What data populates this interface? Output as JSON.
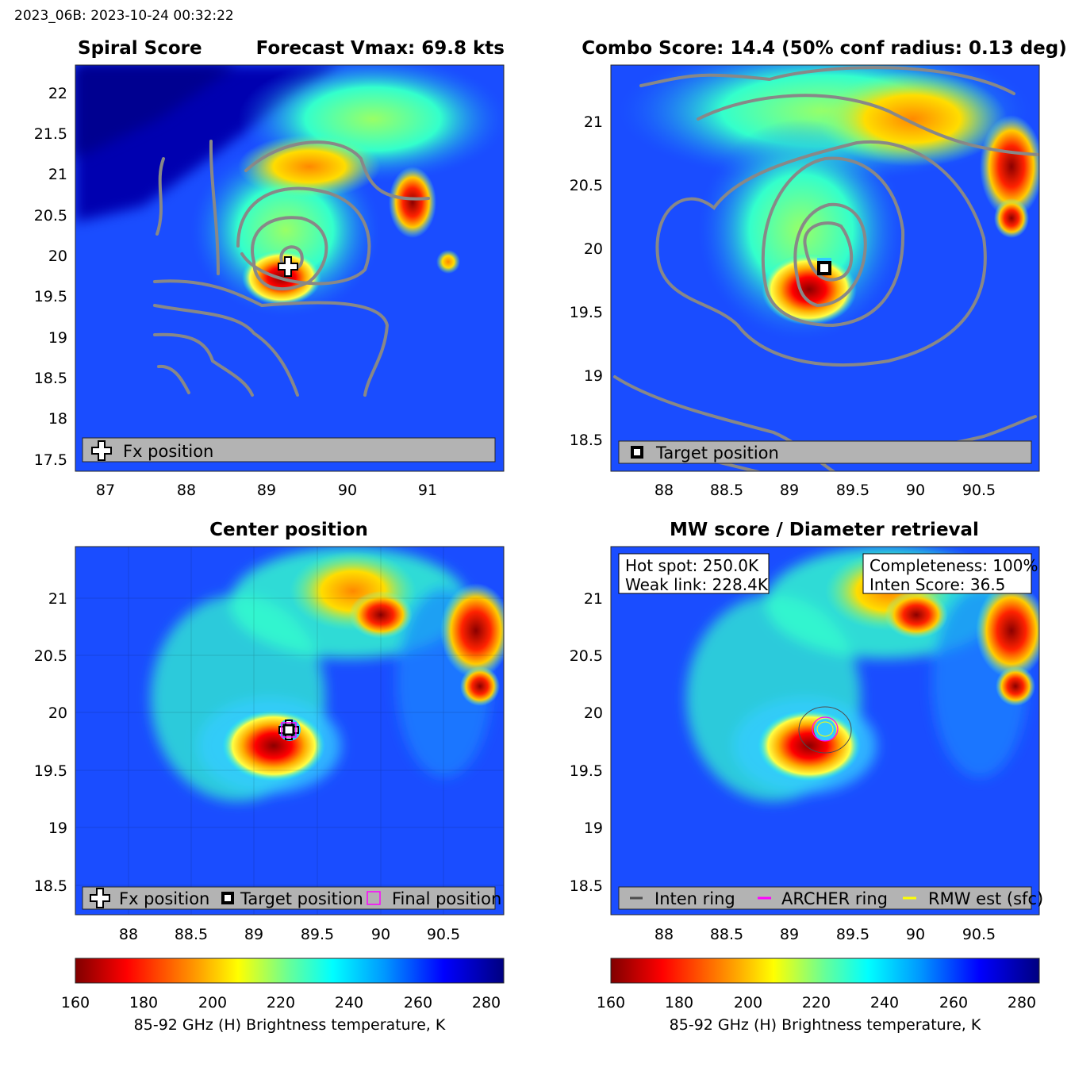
{
  "header": {
    "id_time": "2023_06B: 2023-10-24 00:32:22"
  },
  "colors": {
    "contour": "#888888",
    "legend_box": "#b3b3b3",
    "archer": "#ff00ff",
    "rmw": "#ffff00",
    "inten_ring": "#4d4d4d"
  },
  "panels": {
    "p1": {
      "title_left": "Spiral Score",
      "title_right": "Forecast Vmax: 69.8 kts",
      "legend": [
        "Fx position"
      ],
      "xticks": [
        "87",
        "88",
        "89",
        "90",
        "91"
      ],
      "yticks": [
        "22",
        "21.5",
        "21",
        "20.5",
        "20",
        "19.5",
        "19",
        "18.5",
        "18",
        "17.5"
      ],
      "icon": "fx-position-icon"
    },
    "p2": {
      "title": "Combo Score: 14.4  (50% conf radius: 0.13 deg)",
      "legend": [
        "Target position"
      ],
      "xticks": [
        "88",
        "88.5",
        "89",
        "89.5",
        "90",
        "90.5"
      ],
      "yticks": [
        "21",
        "20.5",
        "20",
        "19.5",
        "19",
        "18.5"
      ],
      "icon": "target-position-icon"
    },
    "p3": {
      "title": "Center position",
      "legend": [
        "Fx position",
        "Target position",
        "Final position"
      ],
      "xticks": [
        "88",
        "88.5",
        "89",
        "89.5",
        "90",
        "90.5"
      ],
      "yticks": [
        "21",
        "20.5",
        "20",
        "19.5",
        "19",
        "18.5"
      ],
      "colorbar_label": "85-92 GHz (H) Brightness temperature, K",
      "colorbar_ticks": [
        "160",
        "180",
        "200",
        "220",
        "240",
        "260",
        "280"
      ]
    },
    "p4": {
      "title": "MW score / Diameter retrieval",
      "box_left": [
        "Hot spot: 250.0K",
        "Weak link: 228.4K"
      ],
      "box_right": [
        "Completeness: 100%",
        "Inten Score: 36.5"
      ],
      "legend": [
        "Inten ring",
        "ARCHER ring",
        "RMW est (sfc)"
      ],
      "xticks": [
        "88",
        "88.5",
        "89",
        "89.5",
        "90",
        "90.5"
      ],
      "yticks": [
        "21",
        "20.5",
        "20",
        "19.5",
        "19",
        "18.5"
      ],
      "colorbar_label": "85-92 GHz (H) Brightness temperature, K",
      "colorbar_ticks": [
        "160",
        "180",
        "200",
        "220",
        "240",
        "260",
        "280"
      ]
    }
  },
  "chart_data": [
    {
      "type": "heatmap",
      "title": "Spiral Score",
      "subtitle": "Forecast Vmax: 69.8 kts",
      "xlim": [
        86.6,
        91.9
      ],
      "ylim": [
        17.3,
        22.4
      ],
      "x_ticks": [
        87,
        88,
        89,
        90,
        91
      ],
      "y_ticks": [
        17.5,
        18,
        18.5,
        19,
        19.5,
        20,
        20.5,
        21,
        21.5,
        22
      ],
      "markers": [
        {
          "name": "Fx position",
          "x": 89.28,
          "y": 19.86
        }
      ],
      "colormap": "jet"
    },
    {
      "type": "heatmap",
      "title": "Combo Score: 14.4  (50% conf radius: 0.13 deg)",
      "xlim": [
        87.6,
        91.0
      ],
      "ylim": [
        18.25,
        21.45
      ],
      "x_ticks": [
        88,
        88.5,
        89,
        89.5,
        90,
        90.5
      ],
      "y_ticks": [
        18.5,
        19,
        19.5,
        20,
        20.5,
        21
      ],
      "markers": [
        {
          "name": "Target position",
          "x": 89.27,
          "y": 19.85
        }
      ],
      "colormap": "jet"
    },
    {
      "type": "heatmap",
      "title": "Center position",
      "xlim": [
        87.6,
        91.0
      ],
      "ylim": [
        18.25,
        21.45
      ],
      "x_ticks": [
        88,
        88.5,
        89,
        89.5,
        90,
        90.5
      ],
      "y_ticks": [
        18.5,
        19,
        19.5,
        20,
        20.5,
        21
      ],
      "markers": [
        {
          "name": "Fx position",
          "x": 89.28,
          "y": 19.86
        },
        {
          "name": "Target position",
          "x": 89.27,
          "y": 19.85
        },
        {
          "name": "Final position",
          "x": 89.27,
          "y": 19.85
        }
      ],
      "colorbar": {
        "label": "85-92 GHz (H) Brightness temperature, K",
        "range": [
          160,
          285
        ],
        "ticks": [
          160,
          180,
          200,
          220,
          240,
          260,
          280
        ]
      },
      "colormap": "jet"
    },
    {
      "type": "heatmap",
      "title": "MW score / Diameter retrieval",
      "xlim": [
        87.6,
        91.0
      ],
      "ylim": [
        18.25,
        21.45
      ],
      "x_ticks": [
        88,
        88.5,
        89,
        89.5,
        90,
        90.5
      ],
      "y_ticks": [
        18.5,
        19,
        19.5,
        20,
        20.5,
        21
      ],
      "annotations": {
        "hot_spot_K": 250.0,
        "weak_link_K": 228.4,
        "completeness_pct": 100,
        "inten_score": 36.5
      },
      "rings": [
        {
          "name": "Inten ring",
          "center": [
            89.28,
            19.85
          ],
          "radius_deg": 0.2
        },
        {
          "name": "ARCHER ring",
          "center": [
            89.27,
            19.84
          ],
          "radius_deg": 0.1
        },
        {
          "name": "RMW est (sfc)",
          "center": [
            89.27,
            19.84
          ],
          "radius_deg": 0.06
        }
      ],
      "colorbar": {
        "label": "85-92 GHz (H) Brightness temperature, K",
        "range": [
          160,
          285
        ],
        "ticks": [
          160,
          180,
          200,
          220,
          240,
          260,
          280
        ]
      },
      "colormap": "jet"
    }
  ]
}
